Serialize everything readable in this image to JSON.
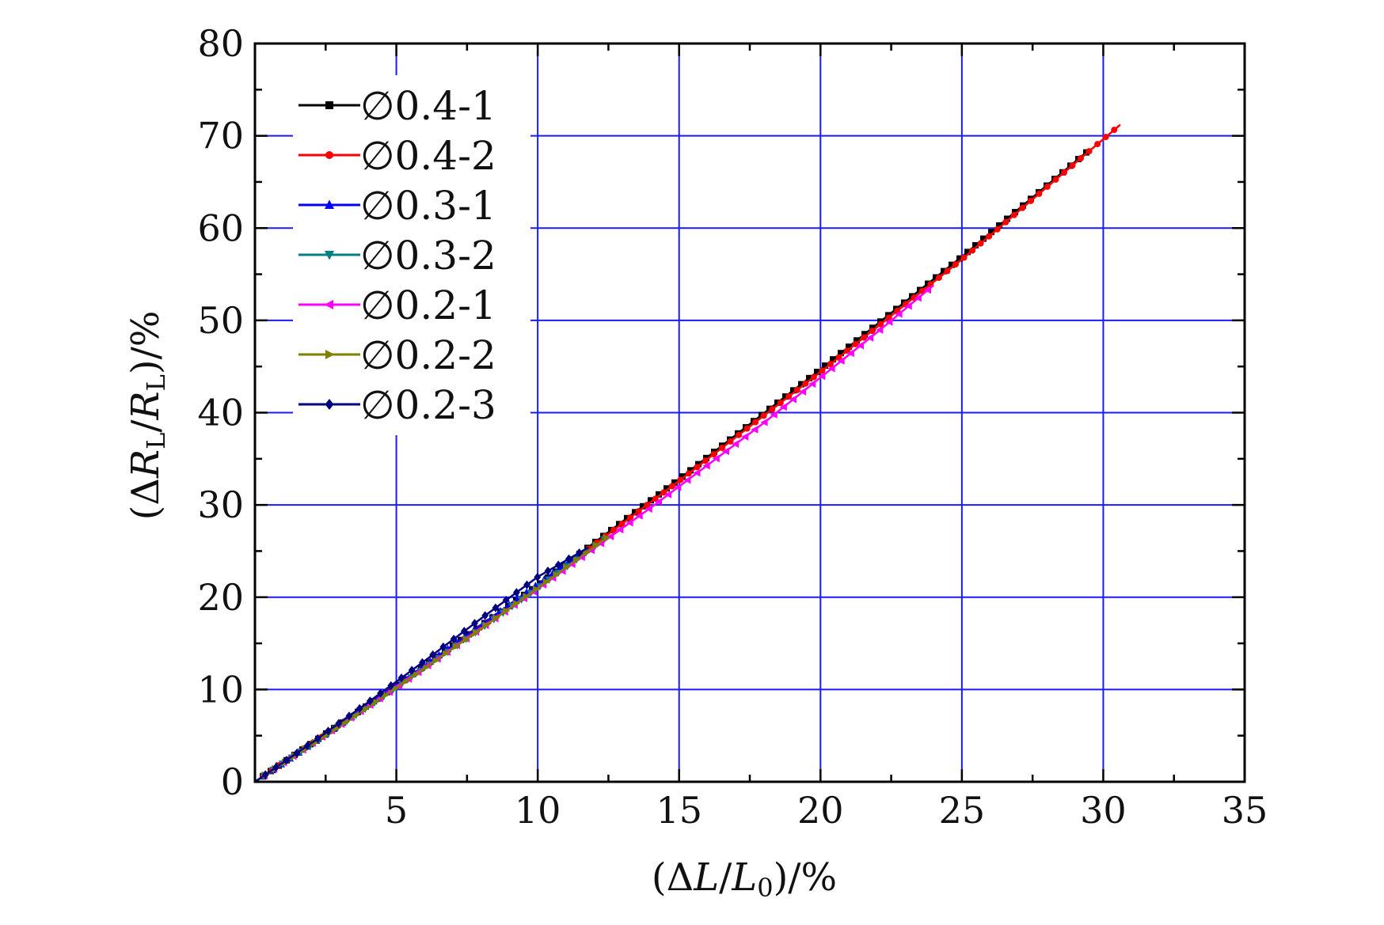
{
  "chart_data": {
    "type": "line",
    "xlabel": "(ΔL/L0)/%",
    "ylabel": "(ΔRL/RL)/%",
    "xlim": [
      0,
      35
    ],
    "ylim": [
      0,
      80
    ],
    "xticks": [
      5,
      10,
      15,
      20,
      25,
      30,
      35
    ],
    "yticks": [
      0,
      10,
      20,
      30,
      40,
      50,
      60,
      70,
      80
    ],
    "grid": true,
    "grid_color": "#1a1aff",
    "legend_position": "top-left",
    "series": [
      {
        "name": "∅0.4-1",
        "color": "#000000",
        "marker": "square",
        "x": [
          0,
          5,
          10,
          15,
          20,
          25,
          29.4
        ],
        "y": [
          0,
          10.4,
          21.3,
          32.8,
          44.7,
          56.9,
          68.2
        ]
      },
      {
        "name": "∅0.4-2",
        "color": "#ff0000",
        "marker": "circle",
        "x": [
          0,
          5,
          10,
          15,
          20,
          25,
          30.6
        ],
        "y": [
          0,
          10.3,
          21.1,
          32.6,
          44.4,
          56.6,
          71.2
        ]
      },
      {
        "name": "∅0.3-1",
        "color": "#0000ff",
        "marker": "triangle-up",
        "x": [
          0,
          2,
          4,
          6,
          8,
          10,
          11.5
        ],
        "y": [
          0,
          4.1,
          8.3,
          12.6,
          17.0,
          21.4,
          24.8
        ]
      },
      {
        "name": "∅0.3-2",
        "color": "#008080",
        "marker": "triangle-down",
        "x": [
          0,
          2,
          4,
          6,
          8,
          10,
          12.5
        ],
        "y": [
          0,
          4.0,
          8.1,
          12.3,
          16.6,
          21.0,
          26.6
        ]
      },
      {
        "name": "∅0.2-1",
        "color": "#ff00ff",
        "marker": "triangle-left",
        "x": [
          0,
          5,
          10,
          14,
          18,
          22,
          24
        ],
        "y": [
          0,
          10.2,
          20.9,
          29.7,
          38.9,
          48.7,
          53.8
        ]
      },
      {
        "name": "∅0.2-2",
        "color": "#808000",
        "marker": "triangle-right",
        "x": [
          0,
          2,
          4,
          6,
          8,
          10,
          12.5
        ],
        "y": [
          0,
          4.0,
          8.1,
          12.3,
          16.6,
          21.0,
          26.6
        ]
      },
      {
        "name": "∅0.2-3",
        "color": "#000080",
        "marker": "diamond",
        "x": [
          0,
          2,
          4,
          6,
          8,
          10,
          11.8
        ],
        "y": [
          0,
          4.2,
          8.6,
          13.1,
          17.7,
          22.2,
          25.4
        ]
      }
    ]
  }
}
